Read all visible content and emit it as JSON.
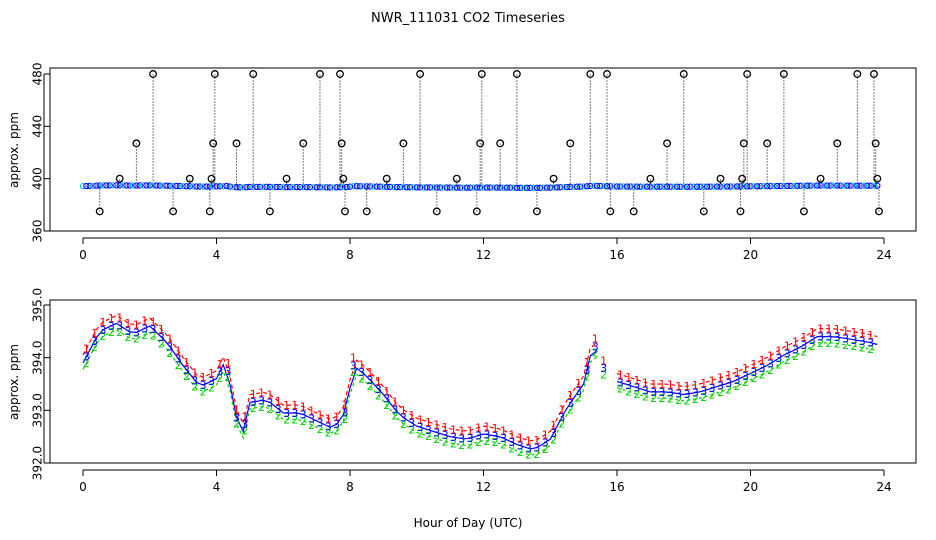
{
  "title": "NWR_111031  CO2 Timeseries",
  "xlabel": "Hour of Day (UTC)",
  "colors": {
    "series1": "#ff0000",
    "series2": "#00cc00",
    "series3": "#0000ff",
    "accent_cyan": "#00c8c8",
    "outlier": "#000000",
    "axis": "#000000"
  },
  "chart_data": [
    {
      "type": "scatter",
      "panel": "top",
      "ylabel": "approx. ppm",
      "xlim": [
        0,
        24
      ],
      "ylim": [
        360,
        480
      ],
      "xticks": [
        0,
        4,
        8,
        12,
        16,
        20,
        24
      ],
      "yticks": [
        360,
        400,
        440,
        480
      ],
      "baseline_ppm": 394,
      "outlier_marker": "open circle with vertical dotted line",
      "outliers": [
        {
          "x": 0.5,
          "y": 375
        },
        {
          "x": 1.1,
          "y": 400
        },
        {
          "x": 1.6,
          "y": 427
        },
        {
          "x": 2.1,
          "y": 480
        },
        {
          "x": 2.7,
          "y": 375
        },
        {
          "x": 3.2,
          "y": 400
        },
        {
          "x": 3.8,
          "y": 375
        },
        {
          "x": 3.85,
          "y": 400
        },
        {
          "x": 3.9,
          "y": 427
        },
        {
          "x": 3.95,
          "y": 480
        },
        {
          "x": 4.6,
          "y": 427
        },
        {
          "x": 5.1,
          "y": 480
        },
        {
          "x": 5.6,
          "y": 375
        },
        {
          "x": 6.1,
          "y": 400
        },
        {
          "x": 6.6,
          "y": 427
        },
        {
          "x": 7.1,
          "y": 480
        },
        {
          "x": 7.7,
          "y": 480
        },
        {
          "x": 7.75,
          "y": 427
        },
        {
          "x": 7.8,
          "y": 400
        },
        {
          "x": 7.85,
          "y": 375
        },
        {
          "x": 8.5,
          "y": 375
        },
        {
          "x": 9.1,
          "y": 400
        },
        {
          "x": 9.6,
          "y": 427
        },
        {
          "x": 10.1,
          "y": 480
        },
        {
          "x": 10.6,
          "y": 375
        },
        {
          "x": 11.2,
          "y": 400
        },
        {
          "x": 11.8,
          "y": 375
        },
        {
          "x": 11.9,
          "y": 427
        },
        {
          "x": 11.95,
          "y": 480
        },
        {
          "x": 12.5,
          "y": 427
        },
        {
          "x": 13.0,
          "y": 480
        },
        {
          "x": 13.6,
          "y": 375
        },
        {
          "x": 14.1,
          "y": 400
        },
        {
          "x": 14.6,
          "y": 427
        },
        {
          "x": 15.2,
          "y": 480
        },
        {
          "x": 15.7,
          "y": 480
        },
        {
          "x": 15.8,
          "y": 375
        },
        {
          "x": 16.5,
          "y": 375
        },
        {
          "x": 17.0,
          "y": 400
        },
        {
          "x": 17.5,
          "y": 427
        },
        {
          "x": 18.0,
          "y": 480
        },
        {
          "x": 18.6,
          "y": 375
        },
        {
          "x": 19.1,
          "y": 400
        },
        {
          "x": 19.7,
          "y": 375
        },
        {
          "x": 19.75,
          "y": 400
        },
        {
          "x": 19.8,
          "y": 427
        },
        {
          "x": 19.9,
          "y": 480
        },
        {
          "x": 20.5,
          "y": 427
        },
        {
          "x": 21.0,
          "y": 480
        },
        {
          "x": 21.6,
          "y": 375
        },
        {
          "x": 22.1,
          "y": 400
        },
        {
          "x": 22.6,
          "y": 427
        },
        {
          "x": 23.2,
          "y": 480
        },
        {
          "x": 23.7,
          "y": 480
        },
        {
          "x": 23.75,
          "y": 427
        },
        {
          "x": 23.8,
          "y": 400
        },
        {
          "x": 23.85,
          "y": 375
        }
      ]
    },
    {
      "type": "line",
      "panel": "bottom",
      "ylabel": "approx. ppm",
      "xlim": [
        0,
        24
      ],
      "ylim": [
        392.0,
        395.0
      ],
      "xticks": [
        0,
        4,
        8,
        12,
        16,
        20,
        24
      ],
      "yticks": [
        392.0,
        393.0,
        394.0,
        395.0
      ],
      "ytick_labels": [
        "392.0",
        "393.0",
        "394.0",
        "395.0"
      ],
      "series": [
        {
          "name": "1",
          "color": "#ff0000",
          "offset": 0.15
        },
        {
          "name": "2",
          "color": "#00cc00",
          "offset": -0.12
        },
        {
          "name": "3",
          "color": "#0000ff",
          "offset": 0.0
        }
      ],
      "x": [
        0.0,
        0.5,
        1.0,
        1.5,
        2.0,
        2.5,
        3.0,
        3.5,
        4.0,
        4.3,
        4.5,
        4.8,
        5.0,
        5.5,
        6.0,
        6.5,
        7.0,
        7.5,
        7.9,
        8.1,
        8.5,
        9.0,
        9.5,
        10.0,
        10.5,
        11.0,
        11.5,
        12.0,
        12.5,
        13.0,
        13.5,
        14.0,
        14.5,
        15.0,
        15.3,
        15.6,
        16.0,
        16.5,
        17.0,
        17.5,
        18.0,
        18.5,
        19.0,
        19.5,
        20.0,
        20.5,
        21.0,
        21.5,
        22.0,
        22.5,
        23.0,
        23.5,
        23.8
      ],
      "values": [
        393.9,
        394.5,
        394.65,
        394.45,
        394.6,
        394.3,
        393.85,
        393.45,
        393.6,
        394.0,
        393.0,
        392.6,
        393.15,
        393.2,
        392.95,
        392.95,
        392.8,
        392.65,
        393.0,
        393.85,
        393.65,
        393.3,
        392.9,
        392.7,
        392.6,
        392.5,
        392.45,
        392.55,
        392.5,
        392.35,
        392.25,
        392.45,
        393.05,
        393.5,
        394.3,
        393.8,
        393.55,
        393.45,
        393.35,
        393.35,
        393.3,
        393.35,
        393.45,
        393.55,
        393.7,
        393.85,
        394.05,
        394.2,
        394.4,
        394.4,
        394.35,
        394.3,
        394.25
      ]
    }
  ]
}
